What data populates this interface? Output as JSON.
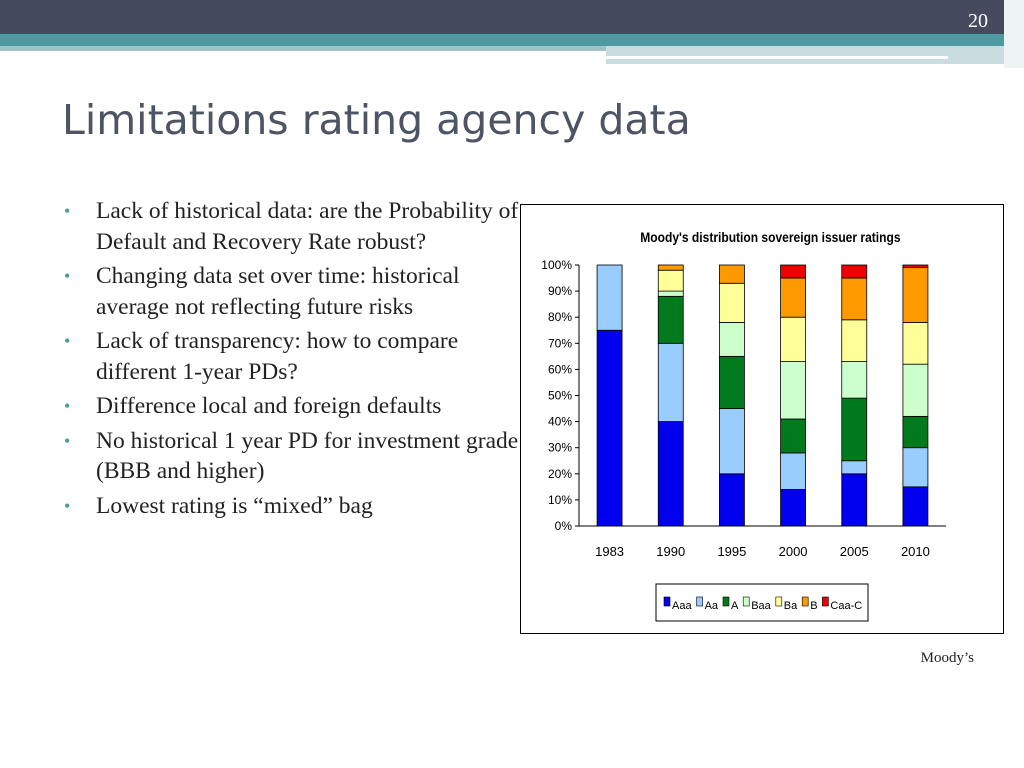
{
  "slide": {
    "page_number": "20",
    "title": "Limitations rating agency data",
    "source": "Moody’s",
    "bullets": [
      "Lack of historical data: are the Probability of Default and Recovery Rate robust?",
      "Changing data set over time: historical average not reflecting future risks",
      "Lack of transparency: how to compare different 1-year PDs?",
      "Difference local and foreign defaults",
      "No historical 1 year PD for investment grade (BBB and higher)",
      "Lowest rating is “mixed” bag"
    ]
  },
  "chart_data": {
    "type": "bar",
    "stacked": true,
    "percent": true,
    "title": "Moody's distribution  sovereign issuer ratings",
    "xlabel": "",
    "ylabel": "",
    "categories": [
      "1983",
      "1990",
      "1995",
      "2000",
      "2005",
      "2010"
    ],
    "ylim": [
      0,
      100
    ],
    "yticks": [
      "0%",
      "10%",
      "20%",
      "30%",
      "40%",
      "50%",
      "60%",
      "70%",
      "80%",
      "90%",
      "100%"
    ],
    "legend_position": "bottom",
    "series": [
      {
        "name": "Aaa",
        "color": "#0000ee",
        "values": [
          75,
          40,
          20,
          14,
          20,
          15
        ]
      },
      {
        "name": "Aa",
        "color": "#99ccff",
        "values": [
          25,
          30,
          25,
          14,
          5,
          15
        ]
      },
      {
        "name": "A",
        "color": "#007a1c",
        "values": [
          0,
          18,
          20,
          13,
          24,
          12
        ]
      },
      {
        "name": "Baa",
        "color": "#ccffcc",
        "values": [
          0,
          2,
          13,
          22,
          14,
          20
        ]
      },
      {
        "name": "Ba",
        "color": "#ffff99",
        "values": [
          0,
          8,
          15,
          17,
          16,
          16
        ]
      },
      {
        "name": "B",
        "color": "#ff9900",
        "values": [
          0,
          2,
          7,
          15,
          16,
          21
        ]
      },
      {
        "name": "Caa-C",
        "color": "#ee0000",
        "values": [
          0,
          0,
          0,
          5,
          5,
          1
        ]
      }
    ]
  }
}
